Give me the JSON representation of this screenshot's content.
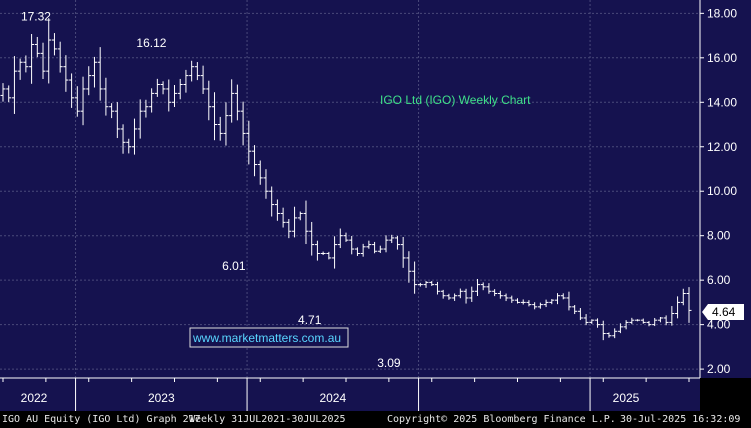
{
  "chart_data": {
    "type": "bar",
    "subtype": "weekly-ohlc",
    "title": "IGO Ltd (IGO) Weekly Chart",
    "watermark": "www.marketmatters.com.au",
    "y_ticks": [
      "18.00",
      "16.00",
      "14.00",
      "12.00",
      "10.00",
      "8.00",
      "6.00",
      "4.00",
      "2.00"
    ],
    "ylim": [
      1.6,
      18.6
    ],
    "x_labels": [
      "2022",
      "2023",
      "2024",
      "2025"
    ],
    "last_price": "4.64",
    "annotations": [
      {
        "text": "17.32",
        "price": 17.32
      },
      {
        "text": "16.12",
        "price": 16.12
      },
      {
        "text": "6.01",
        "price": 6.01
      },
      {
        "text": "4.71",
        "price": 4.71
      },
      {
        "text": "3.09",
        "price": 3.09
      }
    ],
    "prices": [
      14.6,
      14.2,
      15.4,
      15.8,
      15.6,
      16.6,
      16.2,
      15.4,
      16.8,
      16.4,
      15.6,
      15.0,
      14.2,
      13.6,
      14.6,
      15.2,
      15.8,
      14.6,
      13.8,
      13.6,
      12.8,
      12.2,
      12.0,
      12.8,
      13.6,
      13.8,
      14.4,
      14.8,
      14.6,
      14.0,
      14.4,
      14.8,
      15.2,
      15.6,
      15.2,
      14.6,
      13.8,
      13.0,
      12.6,
      13.4,
      14.4,
      13.6,
      12.6,
      11.8,
      11.2,
      10.6,
      10.0,
      9.4,
      9.0,
      8.6,
      8.2,
      8.8,
      9.0,
      8.2,
      7.6,
      7.2,
      7.2,
      7.0,
      7.6,
      8.0,
      7.8,
      7.4,
      7.2,
      7.5,
      7.6,
      7.3,
      7.4,
      7.8,
      7.9,
      7.6,
      7.0,
      6.4,
      5.8,
      5.8,
      5.9,
      5.8,
      5.5,
      5.3,
      5.2,
      5.3,
      5.5,
      5.2,
      5.5,
      5.8,
      5.7,
      5.5,
      5.4,
      5.3,
      5.2,
      5.1,
      5.0,
      5.0,
      4.9,
      4.8,
      4.9,
      5.0,
      5.1,
      5.3,
      5.2,
      4.8,
      4.6,
      4.3,
      4.1,
      4.2,
      4.0,
      3.6,
      3.5,
      3.7,
      3.9,
      4.1,
      4.2,
      4.2,
      4.1,
      4.0,
      4.2,
      4.3,
      4.1,
      4.5,
      5.0,
      5.4,
      4.64
    ],
    "x_period": "Weekly 31JUL2021-30JUL2025"
  },
  "footer": {
    "ticker": "IGO AU Equity (IGO Ltd) Graph 217",
    "period": "Weekly 31JUL2021-30JUL2025",
    "copyright": "Copyright© 2025 Bloomberg Finance L.P.",
    "timestamp": "30-Jul-2025 16:32:09"
  },
  "colors": {
    "background": "#15124f",
    "grid": "#4a4a7a",
    "bars": "#ffffff",
    "title": "#3fe08a",
    "watermark": "#59d6ff",
    "axis_text": "#ffffff"
  }
}
